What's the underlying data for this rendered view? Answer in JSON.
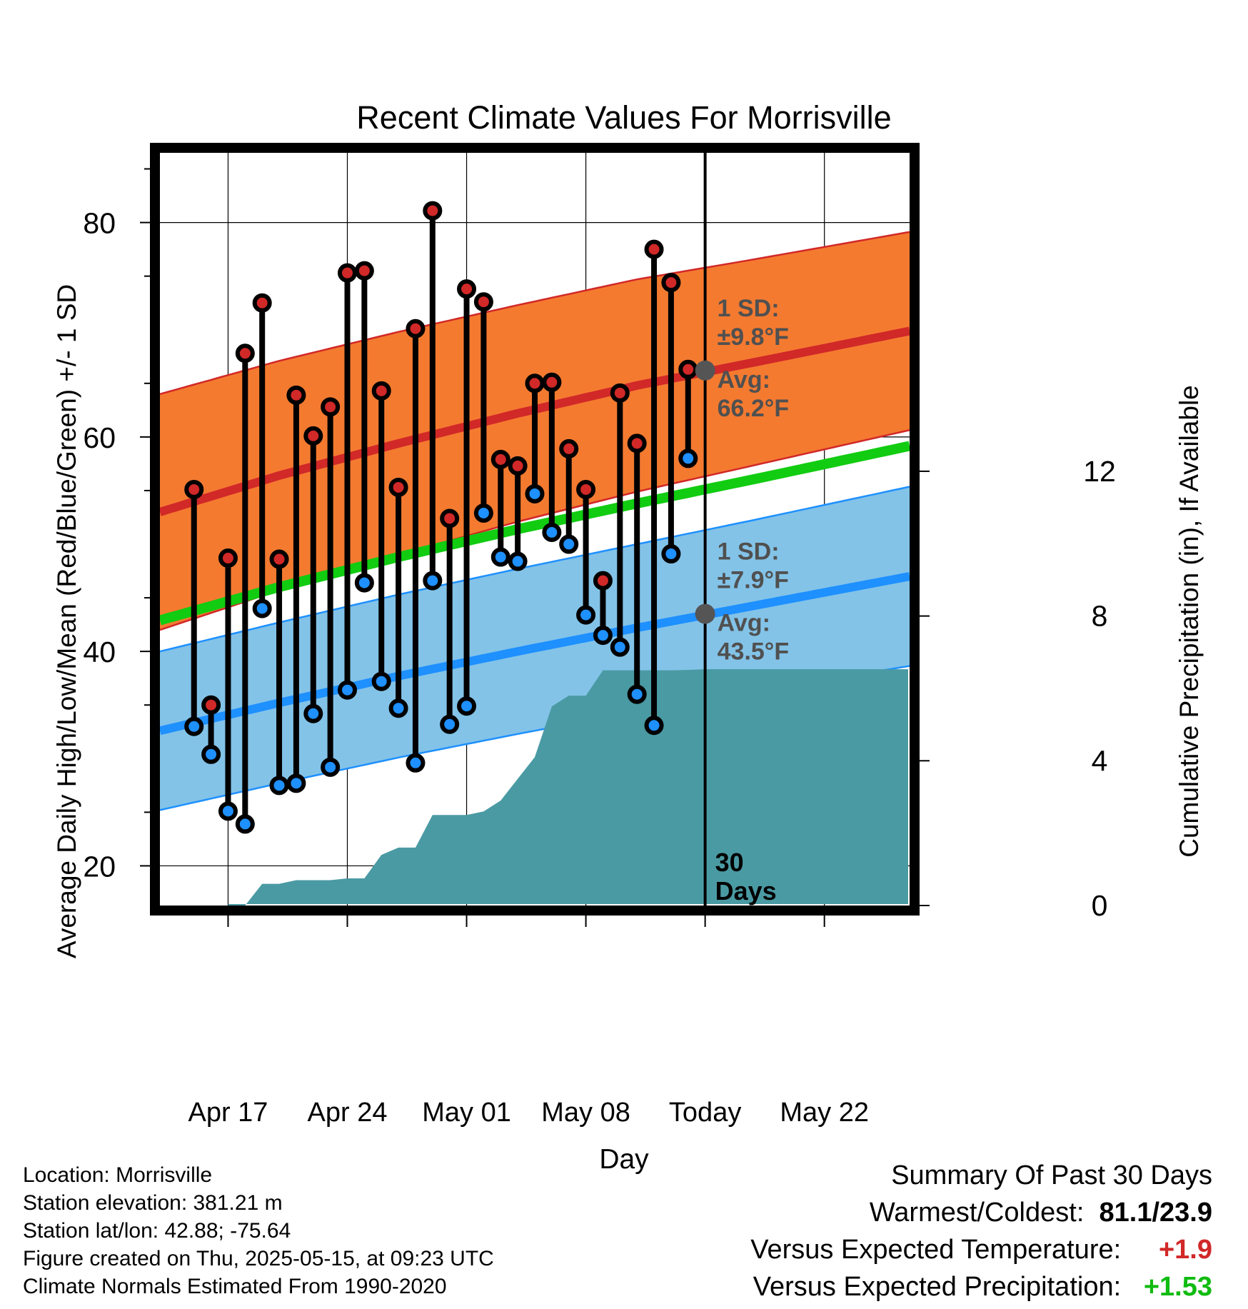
{
  "chart_data": {
    "type": "line",
    "title": "Recent Climate Values For Morrisville",
    "xlabel": "Day",
    "ylabel": "Average Daily High/Low/Mean (Red/Blue/Green) +/- 1 SD",
    "y2label": "Cumulative Precipitation (in), If Available",
    "year": 2025,
    "x_range": [
      "2025-04-13",
      "2025-05-27"
    ],
    "ylim": [
      16.3,
      86.5
    ],
    "y2lim": [
      0,
      20.8
    ],
    "yticks": [
      20,
      40,
      60,
      80
    ],
    "y2ticks": [
      0,
      4,
      8,
      12
    ],
    "xticks": [
      {
        "date": "2025-04-17",
        "label": "Apr 17"
      },
      {
        "date": "2025-04-24",
        "label": "Apr 24"
      },
      {
        "date": "2025-05-01",
        "label": "May 01"
      },
      {
        "date": "2025-05-08",
        "label": "May 08"
      },
      {
        "date": "2025-05-15",
        "label": "Today"
      },
      {
        "date": "2025-05-22",
        "label": "May 22"
      }
    ],
    "grid": true,
    "colors": {
      "high_band": "#f47a30",
      "high_line": "#d12828",
      "low_band": "#83c3e8",
      "low_line": "#1e90ff",
      "mean_line": "#11cc11",
      "precip": "#4a9aa3",
      "high_marker": "#d12828",
      "low_marker": "#1e90ff",
      "annotation_text": "#505050",
      "positive_temp": "#d12828",
      "positive_precip": "#11bb11"
    },
    "normals": {
      "dates": [
        "2025-04-13",
        "2025-04-20",
        "2025-04-27",
        "2025-05-04",
        "2025-05-11",
        "2025-05-18",
        "2025-05-23"
      ],
      "high_avg": [
        53.0,
        56.4,
        59.4,
        62.2,
        64.8,
        67.0,
        68.6
      ],
      "high_sd": [
        11.0,
        10.7,
        10.4,
        10.1,
        9.9,
        9.6,
        9.4
      ],
      "low_avg": [
        32.6,
        35.2,
        37.7,
        40.0,
        42.2,
        44.3,
        45.8
      ],
      "low_sd": [
        7.4,
        7.5,
        7.6,
        7.7,
        7.8,
        8.0,
        8.2
      ],
      "mean": [
        42.9,
        46.0,
        48.8,
        51.4,
        53.8,
        56.1,
        57.8
      ]
    },
    "daily": {
      "dates": [
        "2025-04-15",
        "2025-04-16",
        "2025-04-17",
        "2025-04-18",
        "2025-04-19",
        "2025-04-20",
        "2025-04-21",
        "2025-04-22",
        "2025-04-23",
        "2025-04-24",
        "2025-04-25",
        "2025-04-26",
        "2025-04-27",
        "2025-04-28",
        "2025-04-29",
        "2025-04-30",
        "2025-05-01",
        "2025-05-02",
        "2025-05-03",
        "2025-05-04",
        "2025-05-05",
        "2025-05-06",
        "2025-05-07",
        "2025-05-08",
        "2025-05-09",
        "2025-05-10",
        "2025-05-11",
        "2025-05-12",
        "2025-05-13",
        "2025-05-14"
      ],
      "high": [
        55.1,
        35.0,
        48.7,
        67.8,
        72.5,
        48.6,
        63.9,
        60.1,
        62.8,
        75.3,
        75.5,
        64.3,
        55.3,
        70.1,
        81.1,
        52.4,
        73.8,
        72.6,
        57.9,
        57.3,
        65.0,
        65.1,
        58.9,
        55.1,
        46.6,
        64.1,
        59.4,
        77.5,
        74.4,
        66.3
      ],
      "low": [
        33.0,
        30.4,
        25.1,
        23.9,
        44.0,
        27.5,
        27.7,
        34.2,
        29.2,
        36.4,
        46.4,
        37.2,
        34.7,
        29.6,
        46.6,
        33.2,
        34.9,
        52.9,
        48.8,
        48.4,
        54.7,
        51.1,
        50.0,
        43.4,
        41.5,
        40.4,
        36.0,
        33.1,
        49.1,
        58.0
      ]
    },
    "precip_cumulative": {
      "dates": [
        "2025-04-17",
        "2025-04-18",
        "2025-04-19",
        "2025-04-20",
        "2025-04-21",
        "2025-04-22",
        "2025-04-23",
        "2025-04-24",
        "2025-04-25",
        "2025-04-26",
        "2025-04-27",
        "2025-04-28",
        "2025-04-29",
        "2025-04-30",
        "2025-05-01",
        "2025-05-02",
        "2025-05-03",
        "2025-05-04",
        "2025-05-05",
        "2025-05-06",
        "2025-05-07",
        "2025-05-08",
        "2025-05-09",
        "2025-05-10",
        "2025-05-11",
        "2025-05-12",
        "2025-05-13",
        "2025-05-14",
        "2025-05-15",
        "2025-05-24"
      ],
      "values": [
        0,
        0,
        0.6,
        0.6,
        0.7,
        0.7,
        0.7,
        0.75,
        0.75,
        1.4,
        1.6,
        1.6,
        2.5,
        2.5,
        2.5,
        2.6,
        2.9,
        3.5,
        4.1,
        5.5,
        5.8,
        5.8,
        6.5,
        6.5,
        6.5,
        6.5,
        6.5,
        6.51,
        6.53,
        6.53
      ]
    },
    "today_marker": {
      "date": "2025-05-15",
      "high_avg": 66.2,
      "low_avg": 43.5,
      "high_sd_text": "±9.8°F",
      "low_sd_text": "±7.9°F",
      "high_avg_text": "66.2°F",
      "low_avg_text": "43.5°F"
    },
    "annotations": {
      "sd_label": "1 SD:",
      "avg_label": "Avg:",
      "days_number": "30",
      "days_word": "Days"
    }
  },
  "station": {
    "location": "Location: Morrisville",
    "elevation": "Station elevation: 381.21 m",
    "latlon": "Station lat/lon: 42.88; -75.64",
    "created": "Figure created on Thu, 2025-05-15, at 09:23 UTC",
    "normals": "Climate Normals Estimated From 1990-2020"
  },
  "summary": {
    "title": "Summary Of Past 30 Days",
    "warm_cold_label": "Warmest/Coldest:",
    "warm_cold_value": "81.1/23.9",
    "temp_label": "Versus Expected Temperature:",
    "temp_value": "+1.9",
    "precip_label": "Versus Expected Precipitation:",
    "precip_value": "+1.53"
  }
}
